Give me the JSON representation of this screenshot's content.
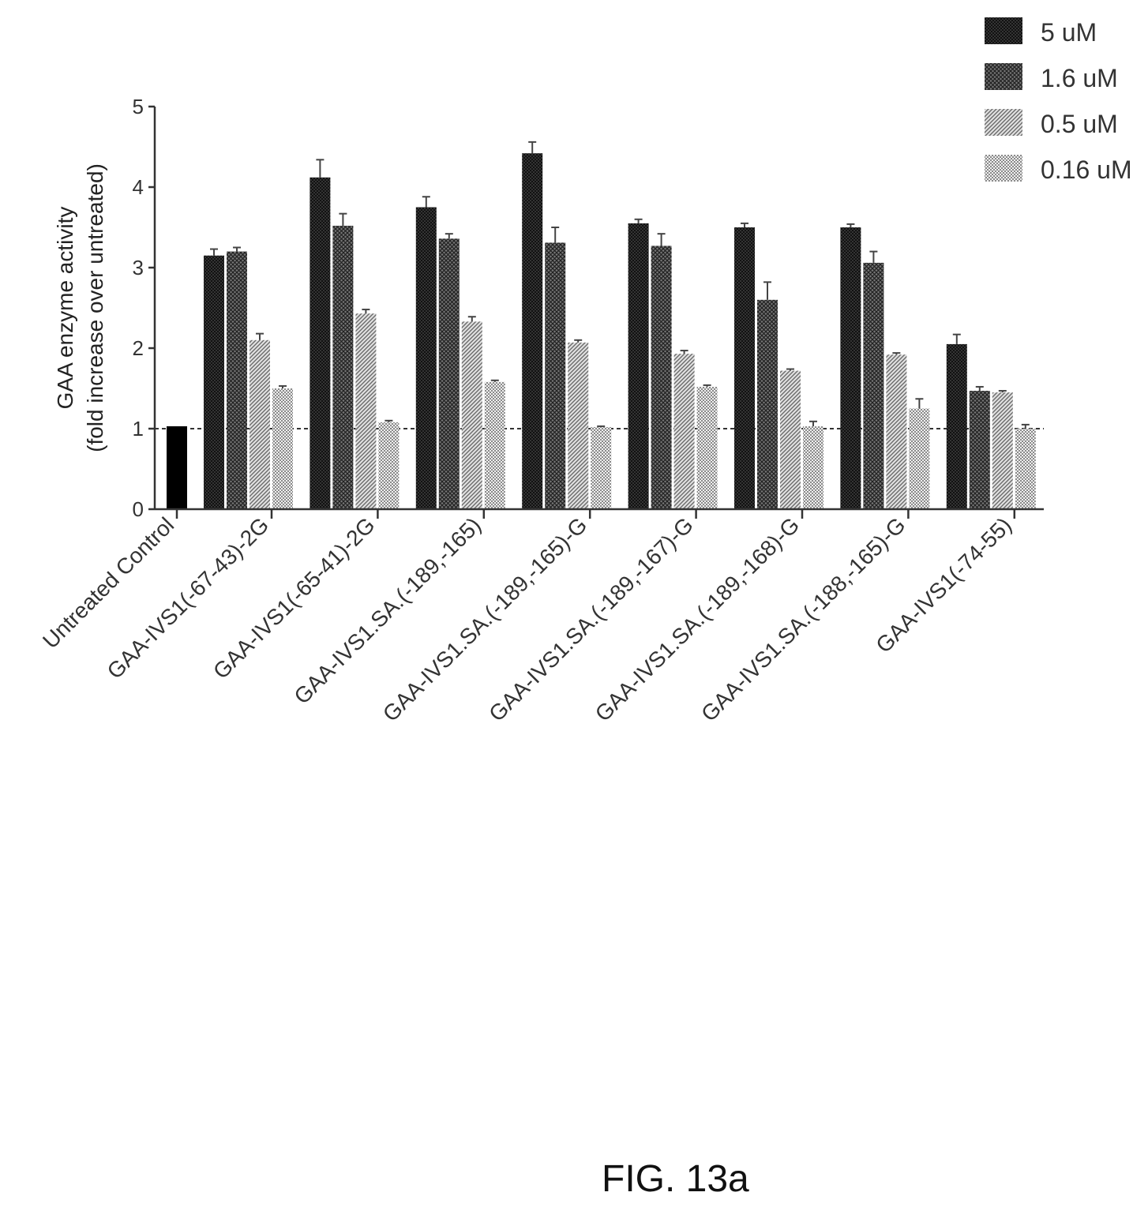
{
  "figure_label": "FIG. 13a",
  "chart_data": {
    "type": "bar",
    "title": "",
    "ylabel_line1": "GAA enzyme activity",
    "ylabel_line2": "(fold increase over untreated)",
    "xlabel": "",
    "ylim": [
      0,
      5
    ],
    "yticks": [
      "0",
      "1",
      "2",
      "3",
      "4",
      "5"
    ],
    "reference_line": 1,
    "legend_position": "top-right",
    "control": {
      "category": "Untreated Control",
      "value": 1.03,
      "color": "#000000"
    },
    "categories": [
      "GAA-IVS1(-67-43)-2G",
      "GAA-IVS1(-65-41)-2G",
      "GAA-IVS1.SA.(-189,-165)",
      "GAA-IVS1.SA.(-189,-165)-G",
      "GAA-IVS1.SA.(-189,-167)-G",
      "GAA-IVS1.SA.(-189,-168)-G",
      "GAA-IVS1.SA.(-188,-165)-G",
      "GAA-IVS1(-74-55)"
    ],
    "series": [
      {
        "name": "5 uM",
        "color": "#2a2a2a",
        "pattern": "dense-crosshatch",
        "values": [
          3.15,
          4.12,
          3.75,
          4.42,
          3.55,
          3.5,
          3.5,
          2.05
        ],
        "errors": [
          0.08,
          0.22,
          0.13,
          0.14,
          0.05,
          0.05,
          0.04,
          0.12
        ]
      },
      {
        "name": "1.6 uM",
        "color": "#444444",
        "pattern": "crosshatch",
        "values": [
          3.2,
          3.52,
          3.36,
          3.31,
          3.27,
          2.6,
          3.06,
          1.47
        ],
        "errors": [
          0.05,
          0.15,
          0.06,
          0.19,
          0.15,
          0.22,
          0.14,
          0.05
        ]
      },
      {
        "name": "0.5 uM",
        "color": "#8a8a8a",
        "pattern": "diagonal",
        "values": [
          2.1,
          2.43,
          2.33,
          2.07,
          1.93,
          1.72,
          1.92,
          1.45
        ],
        "errors": [
          0.08,
          0.05,
          0.06,
          0.03,
          0.04,
          0.02,
          0.02,
          0.02
        ]
      },
      {
        "name": "0.16 uM",
        "color": "#aaaaaa",
        "pattern": "dots",
        "values": [
          1.5,
          1.08,
          1.58,
          1.02,
          1.52,
          1.03,
          1.25,
          1.0
        ],
        "errors": [
          0.03,
          0.02,
          0.02,
          0.01,
          0.02,
          0.06,
          0.12,
          0.05
        ]
      }
    ]
  }
}
